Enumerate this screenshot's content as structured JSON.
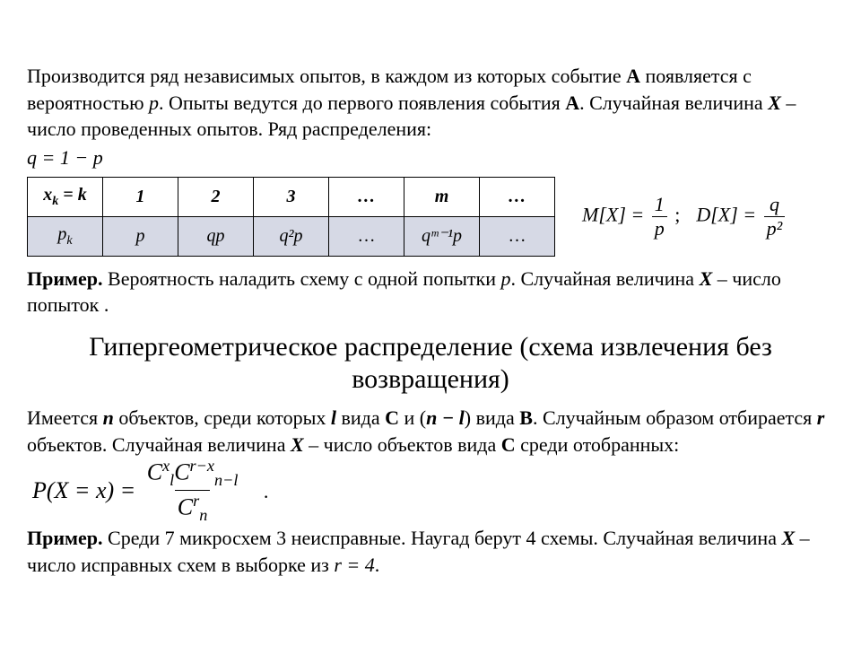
{
  "colors": {
    "page_bg": "#ffffff",
    "text": "#000000",
    "table_border": "#000000",
    "table_header_bg": "#ffffff",
    "table_row_bg": "#d6d9e5"
  },
  "typography": {
    "base_family": "Times New Roman",
    "body_size_pt": 16,
    "title_size_pt": 22
  },
  "intro": {
    "p1_a": "Производится ряд независимых опытов, в каждом из которых событие ",
    "p1_bold": "А",
    "p1_b": " появляется с вероятностью ",
    "p1_var": "p",
    "p1_c": ". Опыты ведутся до первого появления события ",
    "p1_bold2": "А",
    "p1_d": ". Случайная величина ",
    "p1_xvar": "X",
    "p1_e": " – число проведенных опытов. Ряд распределения:",
    "q_line": "q = 1 − p"
  },
  "table": {
    "row_header1": "x",
    "row_header1_sub": "k",
    "row_header1_eq": " = k",
    "headers": [
      "1",
      "2",
      "3",
      "…",
      "m",
      "…"
    ],
    "row2_label": "p",
    "row2_label_sub": "k",
    "cells": [
      "p",
      "qp",
      "q²p",
      "…",
      "qᵐ⁻¹p",
      "…"
    ]
  },
  "mx": {
    "lhs": "M[X] =",
    "num": "1",
    "den": "p",
    "sep": ";",
    "lhs2": "D[X] =",
    "num2": "q",
    "den2": "p²"
  },
  "example1": {
    "label": "Пример.",
    "text_a": " Вероятность наладить схему с одной попытки ",
    "var_p": "p",
    "text_b": ". Случайная величина ",
    "var_x": "X",
    "text_c": " – число попыток ."
  },
  "title2": "Гипергеометрическое распределение (схема извлечения без возвращения)",
  "hyper": {
    "t1": "Имеется ",
    "n": "n",
    "t2": " объектов, среди которых ",
    "l": "l",
    "t3": " вида ",
    "C": "C",
    "t4": " и (",
    "nml": "n − l",
    "t5": ") вида ",
    "B": "B",
    "t6": ". Случайным образом отбирается ",
    "r": "r",
    "t7": " объектов.  Случайная величина ",
    "X": "X",
    "t8": " – число объектов вида ",
    "C2": "C",
    "t9": " среди отобранных: ",
    "dot": "."
  },
  "formula": {
    "lhs": "P(X = x) =",
    "num": "Cˣₗ C ʳ⁻ˣ ₙ₋ₗ",
    "den": "Cʳₙ"
  },
  "example2": {
    "label": "Пример.",
    "text_a": " Среди 7 микросхем 3 неисправные. Наугад берут 4 схемы. Случайная величина ",
    "var_x": "X",
    "text_b": " – число исправных схем в выборке из ",
    "r_eq": "r = 4",
    "text_c": "."
  }
}
